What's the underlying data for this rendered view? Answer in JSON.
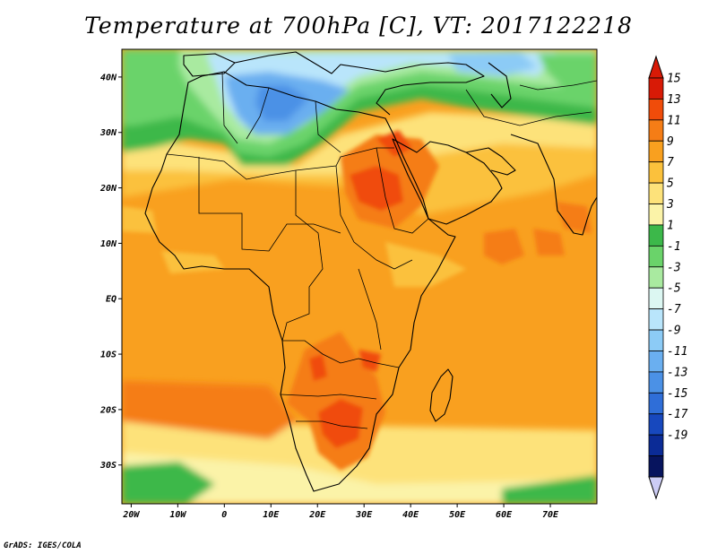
{
  "title": "Temperature at 700hPa [C], VT: 2017122218",
  "credit": "GrADS: IGES/COLA",
  "map": {
    "lon_range": [
      -22,
      80
    ],
    "lat_range": [
      -37,
      45
    ],
    "lon_ticks": [
      {
        "lon": -20,
        "label": "20W"
      },
      {
        "lon": -10,
        "label": "10W"
      },
      {
        "lon": 0,
        "label": "0"
      },
      {
        "lon": 10,
        "label": "10E"
      },
      {
        "lon": 20,
        "label": "20E"
      },
      {
        "lon": 30,
        "label": "30E"
      },
      {
        "lon": 40,
        "label": "40E"
      },
      {
        "lon": 50,
        "label": "50E"
      },
      {
        "lon": 60,
        "label": "60E"
      },
      {
        "lon": 70,
        "label": "70E"
      }
    ],
    "lat_ticks": [
      {
        "lat": 40,
        "label": "40N"
      },
      {
        "lat": 30,
        "label": "30N"
      },
      {
        "lat": 20,
        "label": "20N"
      },
      {
        "lat": 10,
        "label": "10N"
      },
      {
        "lat": 0,
        "label": "EQ"
      },
      {
        "lat": -10,
        "label": "10S"
      },
      {
        "lat": -20,
        "label": "20S"
      },
      {
        "lat": -30,
        "label": "30S"
      }
    ]
  },
  "colorbar": {
    "levels": [
      "15",
      "13",
      "11",
      "9",
      "7",
      "5",
      "3",
      "1",
      "-1",
      "-3",
      "-5",
      "-7",
      "-9",
      "-11",
      "-13",
      "-15",
      "-17",
      "-19"
    ],
    "colors": [
      "#d81a06",
      "#f04c0a",
      "#f57d16",
      "#f9a01f",
      "#fbc13c",
      "#fde27a",
      "#fbf3a8",
      "#3cb84a",
      "#6ad36a",
      "#a9eaa0",
      "#dcf7f2",
      "#b9e5fb",
      "#8ccbf6",
      "#6aaff0",
      "#4b91e6",
      "#2f6ed8",
      "#1748be",
      "#0b2b96",
      "#07145e"
    ],
    "top_arrow_color": "#d81a06",
    "bottom_arrow_color": "#ccccf5"
  }
}
